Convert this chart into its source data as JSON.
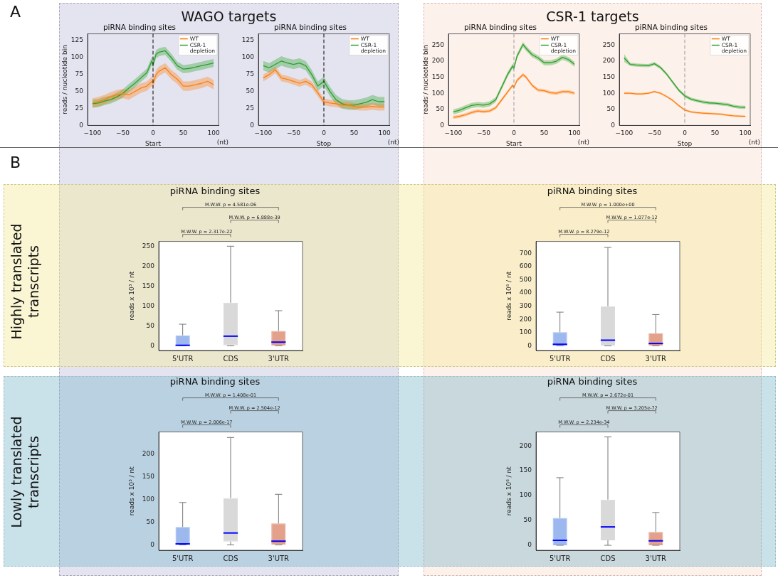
{
  "chart_data": [
    {
      "type": "line",
      "title": "piRNA binding sites",
      "xlabel": "Start",
      "ylabel": "reads / nucleotide bin",
      "x": [
        -100,
        -90,
        -80,
        -70,
        -60,
        -50,
        -40,
        -30,
        -20,
        -10,
        -2,
        0,
        5,
        10,
        20,
        30,
        40,
        50,
        60,
        70,
        80,
        90,
        100
      ],
      "xlim": [
        -108,
        108
      ],
      "xticks": [
        -100,
        -50,
        0,
        50,
        100
      ],
      "ylim": [
        0,
        135
      ],
      "yticks": [
        0,
        25,
        50,
        75,
        100,
        125
      ],
      "legend": "top right",
      "annotations": [
        "(nt)"
      ],
      "ref_lines": [
        {
          "axis": "x",
          "value": 0,
          "color": "#000000",
          "line_style": "dashed"
        }
      ],
      "series": [
        {
          "name": "WT",
          "color": "#ff7f0e",
          "values": [
            33,
            35,
            38,
            42,
            45,
            47,
            45,
            50,
            55,
            58,
            65,
            62,
            75,
            80,
            85,
            75,
            68,
            58,
            58,
            60,
            62,
            65,
            60
          ],
          "lower": [
            26,
            28,
            31,
            35,
            38,
            40,
            38,
            43,
            48,
            51,
            58,
            55,
            68,
            73,
            78,
            68,
            61,
            51,
            51,
            53,
            55,
            58,
            53
          ],
          "upper": [
            40,
            42,
            45,
            49,
            52,
            54,
            52,
            57,
            62,
            65,
            72,
            69,
            82,
            87,
            92,
            82,
            75,
            65,
            65,
            67,
            69,
            72,
            67
          ]
        },
        {
          "name": "CSR-1 depletion",
          "color": "#2ca02c",
          "values": [
            32,
            33,
            36,
            38,
            42,
            47,
            55,
            62,
            70,
            78,
            95,
            90,
            105,
            108,
            110,
            100,
            88,
            83,
            84,
            86,
            88,
            90,
            92
          ],
          "lower": [
            26,
            27,
            30,
            32,
            36,
            41,
            49,
            56,
            64,
            72,
            89,
            84,
            99,
            102,
            104,
            94,
            82,
            77,
            78,
            80,
            82,
            84,
            86
          ],
          "upper": [
            38,
            39,
            42,
            44,
            48,
            53,
            61,
            68,
            76,
            84,
            101,
            96,
            111,
            114,
            116,
            106,
            94,
            89,
            90,
            92,
            94,
            96,
            98
          ]
        }
      ]
    },
    {
      "type": "line",
      "title": "piRNA binding sites",
      "xlabel": "Stop",
      "x": [
        -100,
        -90,
        -80,
        -70,
        -60,
        -50,
        -40,
        -30,
        -20,
        -10,
        0,
        10,
        20,
        30,
        40,
        50,
        60,
        70,
        80,
        90,
        100
      ],
      "xlim": [
        -108,
        108
      ],
      "xticks": [
        -100,
        -50,
        0,
        50,
        100
      ],
      "ylim": [
        0,
        135
      ],
      "yticks": [
        0,
        25,
        50,
        75,
        100,
        125
      ],
      "legend": "top right",
      "annotations": [
        "(nt)"
      ],
      "ref_lines": [
        {
          "axis": "x",
          "value": 0,
          "color": "#000000",
          "line_style": "dashed"
        }
      ],
      "series": [
        {
          "name": "WT",
          "color": "#ff7f0e",
          "values": [
            70,
            75,
            82,
            70,
            68,
            65,
            62,
            65,
            60,
            48,
            35,
            33,
            32,
            30,
            30,
            28,
            27,
            27,
            28,
            27,
            27
          ],
          "lower": [
            65,
            70,
            77,
            65,
            63,
            60,
            57,
            60,
            55,
            43,
            30,
            28,
            27,
            25,
            25,
            23,
            22,
            22,
            23,
            22,
            22
          ],
          "upper": [
            75,
            80,
            87,
            75,
            73,
            70,
            67,
            70,
            65,
            53,
            40,
            38,
            37,
            35,
            35,
            33,
            32,
            32,
            33,
            32,
            32
          ]
        },
        {
          "name": "CSR-1 depletion",
          "color": "#2ca02c",
          "values": [
            88,
            85,
            90,
            95,
            92,
            90,
            92,
            88,
            75,
            58,
            65,
            50,
            38,
            32,
            30,
            30,
            32,
            34,
            38,
            35,
            35
          ],
          "lower": [
            81,
            78,
            83,
            88,
            85,
            83,
            85,
            81,
            68,
            51,
            58,
            43,
            31,
            25,
            23,
            23,
            25,
            27,
            31,
            28,
            28
          ],
          "upper": [
            95,
            92,
            97,
            102,
            99,
            97,
            99,
            95,
            82,
            65,
            72,
            57,
            45,
            39,
            37,
            37,
            39,
            41,
            45,
            42,
            42
          ]
        }
      ]
    },
    {
      "type": "line",
      "title": "piRNA binding sites",
      "xlabel": "Start",
      "ylabel": "reads / nucleotide bin",
      "x": [
        -100,
        -90,
        -80,
        -70,
        -60,
        -50,
        -40,
        -30,
        -20,
        -10,
        -2,
        0,
        5,
        15,
        20,
        30,
        40,
        50,
        60,
        70,
        80,
        90,
        100
      ],
      "xlim": [
        -108,
        108
      ],
      "xticks": [
        -100,
        -50,
        0,
        50,
        100
      ],
      "ylim": [
        0,
        285
      ],
      "yticks": [
        0,
        50,
        100,
        150,
        200,
        250
      ],
      "legend": "top right",
      "annotations": [
        "(nt)"
      ],
      "ref_lines": [
        {
          "axis": "x",
          "value": 0,
          "color": "#999999",
          "line_style": "dashed"
        }
      ],
      "series": [
        {
          "name": "WT",
          "color": "#ff7f0e",
          "values": [
            25,
            28,
            33,
            40,
            45,
            43,
            45,
            55,
            80,
            105,
            125,
            118,
            140,
            158,
            150,
            125,
            110,
            108,
            102,
            100,
            105,
            105,
            100
          ],
          "lower": [
            20,
            23,
            28,
            35,
            40,
            38,
            40,
            50,
            75,
            100,
            120,
            113,
            135,
            153,
            145,
            120,
            105,
            103,
            97,
            95,
            100,
            100,
            95
          ],
          "upper": [
            30,
            33,
            38,
            45,
            50,
            48,
            50,
            60,
            85,
            110,
            130,
            123,
            145,
            163,
            155,
            130,
            115,
            113,
            107,
            105,
            110,
            110,
            105
          ]
        },
        {
          "name": "CSR-1 depletion",
          "color": "#2ca02c",
          "values": [
            42,
            47,
            55,
            62,
            65,
            63,
            67,
            80,
            120,
            160,
            185,
            178,
            215,
            252,
            240,
            220,
            210,
            195,
            195,
            200,
            212,
            205,
            190
          ],
          "lower": [
            34,
            39,
            47,
            54,
            57,
            55,
            59,
            72,
            112,
            152,
            177,
            170,
            207,
            244,
            232,
            212,
            202,
            187,
            187,
            192,
            204,
            197,
            182
          ],
          "upper": [
            50,
            55,
            63,
            70,
            73,
            71,
            75,
            88,
            128,
            168,
            193,
            186,
            223,
            260,
            248,
            228,
            218,
            203,
            203,
            208,
            220,
            213,
            198
          ]
        }
      ]
    },
    {
      "type": "line",
      "title": "piRNA binding sites",
      "xlabel": "Stop",
      "x": [
        -100,
        -90,
        -80,
        -70,
        -60,
        -50,
        -40,
        -30,
        -20,
        -10,
        0,
        10,
        20,
        30,
        40,
        50,
        60,
        70,
        80,
        90,
        100
      ],
      "xlim": [
        -108,
        108
      ],
      "xticks": [
        -100,
        -50,
        0,
        50,
        100
      ],
      "ylim": [
        0,
        285
      ],
      "yticks": [
        0,
        50,
        100,
        150,
        200,
        250
      ],
      "legend": "top right",
      "annotations": [
        "(nt)"
      ],
      "ref_lines": [
        {
          "axis": "x",
          "value": 0,
          "color": "#999999",
          "line_style": "dashed"
        }
      ],
      "series": [
        {
          "name": "WT",
          "color": "#ff7f0e",
          "values": [
            100,
            100,
            98,
            98,
            100,
            105,
            100,
            90,
            78,
            62,
            48,
            42,
            40,
            38,
            37,
            36,
            35,
            32,
            30,
            29,
            28
          ],
          "lower": [
            97,
            97,
            95,
            95,
            97,
            102,
            97,
            87,
            75,
            59,
            45,
            39,
            37,
            35,
            34,
            33,
            32,
            29,
            27,
            26,
            25
          ],
          "upper": [
            103,
            103,
            101,
            101,
            103,
            108,
            103,
            93,
            81,
            65,
            51,
            45,
            43,
            41,
            40,
            39,
            38,
            35,
            33,
            32,
            31
          ]
        },
        {
          "name": "CSR-1 depletion",
          "color": "#2ca02c",
          "values": [
            210,
            190,
            188,
            187,
            186,
            192,
            180,
            160,
            135,
            110,
            92,
            82,
            77,
            73,
            70,
            69,
            67,
            65,
            60,
            57,
            56
          ],
          "lower": [
            198,
            185,
            183,
            182,
            181,
            187,
            175,
            155,
            130,
            105,
            87,
            77,
            72,
            68,
            65,
            64,
            62,
            60,
            55,
            52,
            51
          ],
          "upper": [
            222,
            195,
            193,
            192,
            191,
            197,
            185,
            165,
            140,
            115,
            97,
            87,
            82,
            78,
            75,
            74,
            72,
            70,
            65,
            62,
            61
          ]
        }
      ]
    },
    {
      "type": "box",
      "title": "piRNA binding sites",
      "ylabel": "reads x 10³ / nt",
      "categories": [
        "5'UTR",
        "CDS",
        "3'UTR"
      ],
      "colors": [
        "#9db8ef",
        "#d9d9d9",
        "#e3a08a"
      ],
      "ylim": [
        -12,
        262
      ],
      "yticks": [
        0,
        50,
        100,
        150,
        200,
        250
      ],
      "annotations": [
        "M.W.W. p = 4.581e-06",
        "M.W.W. p = 6.888e-39",
        "M.W.W. p = 2.317e-22"
      ],
      "boxes": [
        {
          "low": 0,
          "q1": 0,
          "median": 1,
          "q3": 26,
          "high": 54
        },
        {
          "low": 0,
          "q1": 1,
          "median": 24,
          "q3": 108,
          "high": 250
        },
        {
          "low": 0,
          "q1": 0,
          "median": 9,
          "q3": 37,
          "high": 88
        }
      ]
    },
    {
      "type": "box",
      "title": "piRNA binding sites",
      "ylabel": "reads x 10⁶ / nt",
      "categories": [
        "5'UTR",
        "CDS",
        "3'UTR"
      ],
      "colors": [
        "#9db8ef",
        "#d9d9d9",
        "#e3a08a"
      ],
      "ylim": [
        -35,
        790
      ],
      "yticks": [
        0,
        100,
        200,
        300,
        400,
        500,
        600,
        700
      ],
      "annotations": [
        "M.W.W. p = 1.000e+00",
        "M.W.W. p = 1.077e-12",
        "M.W.W. p = 8.279e-12"
      ],
      "boxes": [
        {
          "low": 0,
          "q1": 0,
          "median": 12,
          "q3": 103,
          "high": 255
        },
        {
          "low": 0,
          "q1": 0,
          "median": 43,
          "q3": 300,
          "high": 745
        },
        {
          "low": 0,
          "q1": 0,
          "median": 18,
          "q3": 95,
          "high": 237
        }
      ]
    },
    {
      "type": "box",
      "title": "piRNA binding sites",
      "ylabel": "reads x 10³ / nt",
      "categories": [
        "5'UTR",
        "CDS",
        "3'UTR"
      ],
      "colors": [
        "#9db8ef",
        "#d9d9d9",
        "#e3a08a"
      ],
      "ylim": [
        -12,
        248
      ],
      "yticks": [
        0,
        50,
        100,
        150,
        200
      ],
      "annotations": [
        "M.W.W. p = 1.408e-01",
        "M.W.W. p = 2.504e-12",
        "M.W.W. p = 2.006e-17"
      ],
      "boxes": [
        {
          "low": 0,
          "q1": 0,
          "median": 2,
          "q3": 39,
          "high": 93
        },
        {
          "low": 0,
          "q1": 7,
          "median": 26,
          "q3": 103,
          "high": 236
        },
        {
          "low": 0,
          "q1": 0,
          "median": 8,
          "q3": 47,
          "high": 111
        }
      ]
    },
    {
      "type": "box",
      "title": "piRNA binding sites",
      "ylabel": "reads x 10⁶ / nt",
      "categories": [
        "5'UTR",
        "CDS",
        "3'UTR"
      ],
      "colors": [
        "#9db8ef",
        "#d9d9d9",
        "#e3a08a"
      ],
      "ylim": [
        -10,
        228
      ],
      "yticks": [
        0,
        50,
        100,
        150,
        200
      ],
      "annotations": [
        "M.W.W. p = 2.672e-01",
        "M.W.W. p = 3.205e-72",
        "M.W.W. p = 2.234e-34"
      ],
      "boxes": [
        {
          "low": 0,
          "q1": 0,
          "median": 10,
          "q3": 55,
          "high": 136
        },
        {
          "low": 0,
          "q1": 10,
          "median": 37,
          "q3": 92,
          "high": 218
        },
        {
          "low": 0,
          "q1": 0,
          "median": 9,
          "q3": 27,
          "high": 66
        }
      ]
    },
    {
      "type": "other",
      "annotations": [
        "A",
        "WAGO targets",
        "CSR-1 targets",
        "B",
        "Highly translated transcripts",
        "Lowly translated transcripts"
      ]
    }
  ]
}
